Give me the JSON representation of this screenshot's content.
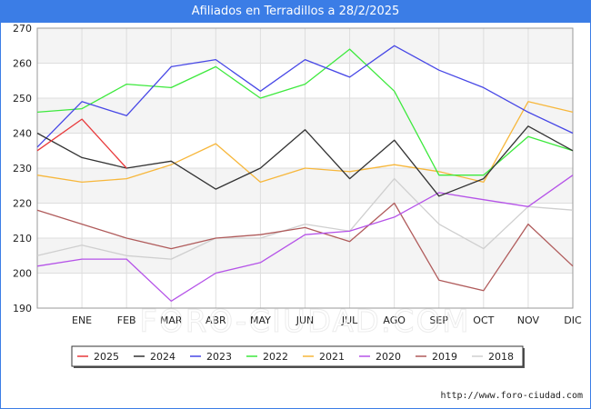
{
  "title": "Afiliados en Terradillos a 28/2/2025",
  "watermark": "FORO-CIUDAD.COM",
  "source_url": "http://www.foro-ciudad.com",
  "chart_data": {
    "type": "line",
    "categories": [
      "",
      "ENE",
      "FEB",
      "MAR",
      "ABR",
      "MAY",
      "JUN",
      "JUL",
      "AGO",
      "SEP",
      "OCT",
      "NOV",
      "DIC"
    ],
    "ylim": [
      190,
      270
    ],
    "yticks": [
      190,
      200,
      210,
      220,
      230,
      240,
      250,
      260,
      270
    ],
    "grid": true,
    "legend_position": "bottom",
    "series": [
      {
        "name": "2025",
        "color": "#e8393b",
        "values": [
          235,
          244,
          230,
          null,
          null,
          null,
          null,
          null,
          null,
          null,
          null,
          null,
          null
        ]
      },
      {
        "name": "2024",
        "color": "#333333",
        "values": [
          240,
          233,
          230,
          232,
          224,
          230,
          241,
          227,
          238,
          222,
          227,
          242,
          235
        ]
      },
      {
        "name": "2023",
        "color": "#4747e6",
        "values": [
          236,
          249,
          245,
          259,
          261,
          252,
          261,
          256,
          265,
          258,
          253,
          246,
          240
        ]
      },
      {
        "name": "2022",
        "color": "#3de93d",
        "values": [
          246,
          247,
          254,
          253,
          259,
          250,
          254,
          264,
          252,
          228,
          228,
          239,
          235
        ]
      },
      {
        "name": "2021",
        "color": "#f7b73b",
        "values": [
          228,
          226,
          227,
          231,
          237,
          226,
          230,
          229,
          231,
          229,
          226,
          249,
          246
        ]
      },
      {
        "name": "2020",
        "color": "#b553e8",
        "values": [
          202,
          204,
          204,
          192,
          200,
          203,
          211,
          212,
          216,
          223,
          221,
          219,
          228
        ]
      },
      {
        "name": "2019",
        "color": "#b05b5b",
        "values": [
          218,
          214,
          210,
          207,
          210,
          211,
          213,
          209,
          220,
          198,
          195,
          214,
          202
        ]
      },
      {
        "name": "2018",
        "color": "#cfcfcf",
        "values": [
          205,
          208,
          205,
          204,
          210,
          210,
          214,
          212,
          227,
          214,
          207,
          219,
          218
        ]
      }
    ]
  }
}
